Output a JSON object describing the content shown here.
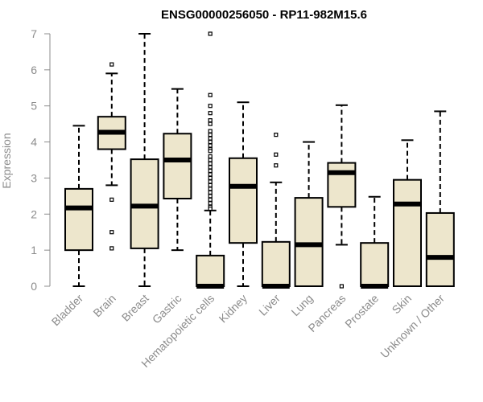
{
  "chart_data": {
    "type": "box",
    "title": "ENSG00000256050 - RP11-982M15.6",
    "xlabel": "",
    "ylabel": "Expression",
    "ylim": [
      0,
      7
    ],
    "yticks": [
      0,
      1,
      2,
      3,
      4,
      5,
      6,
      7
    ],
    "grid": false,
    "legend": "none",
    "colors": {
      "box_fill": "#ede6cc",
      "stroke": "#000000",
      "axis_text": "#8c8c8c"
    },
    "categories": [
      "Bladder",
      "Brain",
      "Breast",
      "Gastric",
      "Hematopoietic cells",
      "Kidney",
      "Liver",
      "Lung",
      "Pancreas",
      "Prostate",
      "Skin",
      "Unknown / Other"
    ],
    "boxes": [
      {
        "min": 0,
        "q1": 1.0,
        "median": 2.17,
        "q3": 2.7,
        "max": 4.45,
        "outliers": []
      },
      {
        "min": 2.8,
        "q1": 3.8,
        "median": 4.27,
        "q3": 4.7,
        "max": 5.9,
        "outliers": [
          6.15,
          2.4,
          1.5,
          1.05
        ]
      },
      {
        "min": 0,
        "q1": 1.05,
        "median": 2.22,
        "q3": 3.52,
        "max": 7.0,
        "outliers": []
      },
      {
        "min": 1.0,
        "q1": 2.43,
        "median": 3.5,
        "q3": 4.23,
        "max": 5.47,
        "outliers": []
      },
      {
        "min": 0,
        "q1": 0,
        "median": 0,
        "q3": 0.85,
        "max": 2.1,
        "outliers": [
          7.0,
          5.3,
          5.0,
          4.8,
          4.6,
          4.5,
          4.3,
          4.2,
          4.1,
          4.0,
          3.9,
          3.8,
          3.75,
          3.6,
          3.5,
          3.4,
          3.3,
          3.2,
          3.1,
          3.0,
          2.9,
          2.8,
          2.7,
          2.6,
          2.5,
          2.4,
          2.3,
          2.2,
          2.15
        ]
      },
      {
        "min": 0,
        "q1": 1.2,
        "median": 2.77,
        "q3": 3.55,
        "max": 5.1,
        "outliers": []
      },
      {
        "min": 0,
        "q1": 0,
        "median": 0,
        "q3": 1.23,
        "max": 2.88,
        "outliers": [
          4.2,
          3.65,
          3.35
        ]
      },
      {
        "min": 0,
        "q1": 0,
        "median": 1.15,
        "q3": 2.45,
        "max": 4.0,
        "outliers": []
      },
      {
        "min": 1.15,
        "q1": 2.2,
        "median": 3.15,
        "q3": 3.42,
        "max": 5.02,
        "outliers": [
          0
        ]
      },
      {
        "min": 0,
        "q1": 0,
        "median": 0,
        "q3": 1.2,
        "max": 2.48,
        "outliers": []
      },
      {
        "min": 0,
        "q1": 0,
        "median": 2.28,
        "q3": 2.95,
        "max": 4.05,
        "outliers": []
      },
      {
        "min": 0,
        "q1": 0,
        "median": 0.8,
        "q3": 2.03,
        "max": 4.85,
        "outliers": []
      }
    ]
  }
}
